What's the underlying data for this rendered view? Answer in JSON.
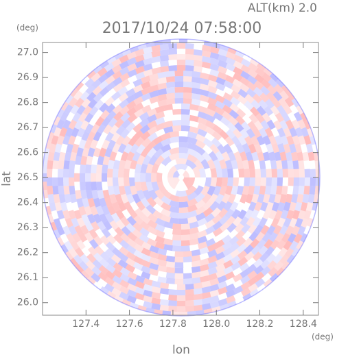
{
  "chart_data": {
    "type": "radar-ppi",
    "title": "2017/10/24 07:58:00",
    "annotation": "ALT(km)  2.0",
    "x_label": "lon",
    "y_label": "lat",
    "x_unit": "(deg)",
    "y_unit": "(deg)",
    "xlim": [
      127.2,
      128.47
    ],
    "ylim": [
      25.95,
      27.04
    ],
    "xticks": [
      127.4,
      127.6,
      127.8,
      {
        "value": 128,
        "label": "128.0"
      },
      128.2,
      128.4
    ],
    "yticks": [
      {
        "value": 26,
        "label": "26.0"
      },
      26.1,
      26.2,
      26.3,
      26.4,
      26.5,
      26.6,
      26.7,
      26.8,
      26.9,
      {
        "value": 27,
        "label": "27.0"
      }
    ]
  }
}
